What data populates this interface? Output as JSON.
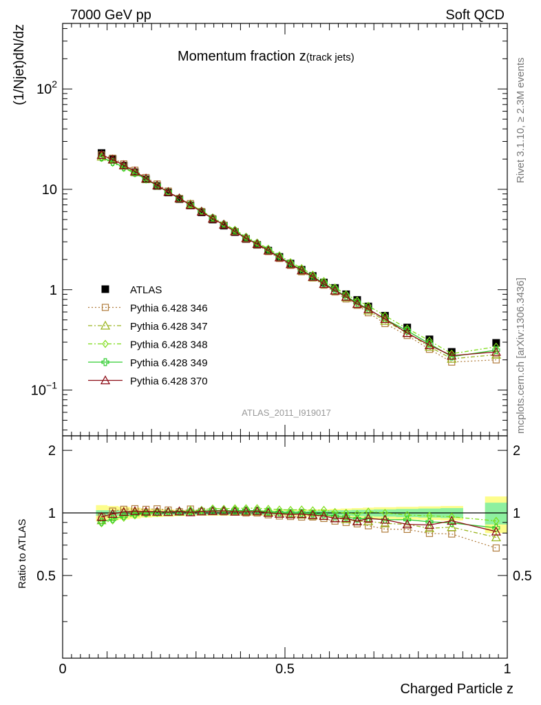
{
  "header": {
    "left": "7000 GeV pp",
    "right": "Soft QCD"
  },
  "title_main": "Momentum fraction z",
  "title_sub": "(track jets)",
  "ylabel_top": "(1/Njet)dN/dz",
  "ylabel_bottom": "Ratio to ATLAS",
  "xlabel": "Charged Particle z",
  "analysis_tag": "ATLAS_2011_I919017",
  "side_text_1": "Rivet 3.1.10, ≥ 2.3M events",
  "side_text_2": "mcplots.cern.ch [arXiv:1306.3436]",
  "top_yticks": [
    {
      "value": 0.1,
      "base": "10",
      "exp": "−1"
    },
    {
      "value": 1,
      "base": "1",
      "exp": ""
    },
    {
      "value": 10,
      "base": "10",
      "exp": ""
    },
    {
      "value": 100,
      "base": "10",
      "exp": "2"
    }
  ],
  "bottom_yticks": [
    {
      "value": 0.5,
      "label": "0.5"
    },
    {
      "value": 1,
      "label": "1"
    },
    {
      "value": 2,
      "label": "2"
    }
  ],
  "xticks": [
    {
      "value": 0,
      "label": "0"
    },
    {
      "value": 0.5,
      "label": "0.5"
    },
    {
      "value": 1,
      "label": "1"
    }
  ],
  "chart_data": {
    "type": "line",
    "x": [
      0.0875,
      0.1125,
      0.1375,
      0.1625,
      0.1875,
      0.2125,
      0.2375,
      0.2625,
      0.2875,
      0.3125,
      0.3375,
      0.3625,
      0.3875,
      0.4125,
      0.4375,
      0.4625,
      0.4875,
      0.5125,
      0.5375,
      0.5625,
      0.5875,
      0.6125,
      0.6375,
      0.6625,
      0.6875,
      0.725,
      0.775,
      0.825,
      0.875,
      0.975
    ],
    "xlim": [
      0,
      1
    ],
    "ylim_top": [
      0.035,
      450
    ],
    "ylim_ratio": [
      0.2,
      2.35
    ],
    "yscale_top": "log",
    "series": [
      {
        "name": "ATLAS",
        "color": "#000000",
        "marker": "filled-square",
        "values": [
          23.0,
          20.0,
          17.2,
          14.8,
          12.6,
          10.8,
          9.3,
          8.0,
          6.9,
          5.9,
          5.0,
          4.35,
          3.75,
          3.2,
          2.8,
          2.45,
          2.12,
          1.82,
          1.58,
          1.37,
          1.18,
          1.04,
          0.9,
          0.79,
          0.68,
          0.55,
          0.42,
          0.32,
          0.24,
          0.295
        ]
      },
      {
        "name": "Pythia 6.428 346",
        "color": "#b07c3c",
        "marker": "open-square",
        "dash": "2,3",
        "values": [
          22.0,
          20.4,
          17.9,
          15.5,
          13.1,
          11.3,
          9.6,
          8.1,
          7.2,
          6.0,
          5.1,
          4.4,
          3.8,
          3.2,
          2.8,
          2.4,
          2.05,
          1.75,
          1.51,
          1.31,
          1.11,
          0.95,
          0.81,
          0.7,
          0.59,
          0.46,
          0.35,
          0.255,
          0.19,
          0.2
        ]
      },
      {
        "name": "Pythia 6.428 347",
        "color": "#9ab41e",
        "marker": "open-triangle",
        "dash": "6,3,2,3",
        "values": [
          21.2,
          19.8,
          17.3,
          14.9,
          12.7,
          10.9,
          9.4,
          8.1,
          7.1,
          6.0,
          5.1,
          4.45,
          3.85,
          3.27,
          2.86,
          2.47,
          2.1,
          1.8,
          1.55,
          1.33,
          1.14,
          0.98,
          0.84,
          0.72,
          0.62,
          0.49,
          0.37,
          0.27,
          0.205,
          0.225
        ]
      },
      {
        "name": "Pythia 6.428 348",
        "color": "#7cdc14",
        "marker": "open-diamond",
        "dash": "6,3,2,3",
        "values": [
          20.5,
          18.4,
          16.3,
          14.4,
          12.5,
          10.8,
          9.4,
          8.1,
          7.1,
          6.1,
          5.25,
          4.55,
          3.95,
          3.37,
          2.95,
          2.56,
          2.2,
          1.88,
          1.64,
          1.41,
          1.22,
          1.05,
          0.9,
          0.78,
          0.69,
          0.55,
          0.41,
          0.31,
          0.23,
          0.27
        ]
      },
      {
        "name": "Pythia 6.428 349",
        "color": "#2ecc2e",
        "marker": "cross",
        "dash": "",
        "values": [
          20.8,
          18.7,
          16.6,
          14.6,
          12.6,
          10.9,
          9.4,
          8.1,
          7.0,
          6.0,
          5.15,
          4.45,
          3.85,
          3.29,
          2.87,
          2.49,
          2.13,
          1.82,
          1.58,
          1.36,
          1.16,
          1.0,
          0.86,
          0.74,
          0.64,
          0.51,
          0.39,
          0.29,
          0.215,
          0.25
        ]
      },
      {
        "name": "Pythia 6.428 370",
        "color": "#8b0a14",
        "marker": "open-triangle",
        "dash": "",
        "values": [
          22.0,
          19.8,
          17.4,
          15.1,
          12.8,
          10.95,
          9.4,
          8.15,
          6.95,
          6.0,
          5.1,
          4.45,
          3.8,
          3.25,
          2.85,
          2.45,
          2.1,
          1.79,
          1.56,
          1.34,
          1.14,
          0.98,
          0.85,
          0.72,
          0.64,
          0.51,
          0.37,
          0.28,
          0.22,
          0.24
        ]
      }
    ],
    "band_x_edges": [
      0.075,
      0.1,
      0.125,
      0.15,
      0.175,
      0.2,
      0.225,
      0.25,
      0.275,
      0.3,
      0.325,
      0.35,
      0.375,
      0.4,
      0.425,
      0.45,
      0.475,
      0.5,
      0.525,
      0.55,
      0.575,
      0.6,
      0.625,
      0.65,
      0.675,
      0.7,
      0.75,
      0.8,
      0.85,
      0.9,
      0.95,
      1.0
    ],
    "band_yellow": [
      0.09,
      0.08,
      0.07,
      0.06,
      0.05,
      0.045,
      0.04,
      0.035,
      0.03,
      0.03,
      0.03,
      0.03,
      0.03,
      0.03,
      0.03,
      0.03,
      0.03,
      0.03,
      0.035,
      0.04,
      0.04,
      0.045,
      0.05,
      0.055,
      0.06,
      0.065,
      0.07,
      0.075,
      0.08,
      0.0,
      0.2
    ],
    "band_green": [
      0.03,
      0.03,
      0.025,
      0.02,
      0.02,
      0.02,
      0.02,
      0.02,
      0.02,
      0.02,
      0.02,
      0.02,
      0.02,
      0.02,
      0.02,
      0.02,
      0.02,
      0.02,
      0.02,
      0.025,
      0.025,
      0.03,
      0.03,
      0.035,
      0.035,
      0.04,
      0.045,
      0.05,
      0.055,
      0.0,
      0.12
    ]
  }
}
